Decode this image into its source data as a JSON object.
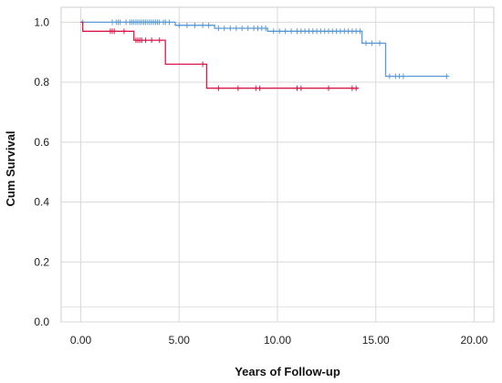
{
  "chart_data": {
    "type": "line",
    "xlabel": "Years of Follow-up",
    "ylabel": "Cum Survival",
    "xlim": [
      -1,
      21
    ],
    "ylim": [
      0,
      1.05
    ],
    "x_ticks": [
      0,
      5,
      10,
      15,
      20
    ],
    "x_tick_labels": [
      "0.00",
      "5.00",
      "10.00",
      "15.00",
      "20.00"
    ],
    "y_ticks": [
      0,
      0.2,
      0.4,
      0.6,
      0.8,
      1.0
    ],
    "y_tick_labels": [
      "0.0",
      "0.2",
      "0.4",
      "0.6",
      "0.8",
      "1.0"
    ],
    "grid": true,
    "legend": "none",
    "series": [
      {
        "color": "#5b9bd5",
        "step": [
          [
            0,
            1.0
          ],
          [
            4.8,
            1.0
          ],
          [
            4.8,
            0.99
          ],
          [
            6.8,
            0.99
          ],
          [
            6.8,
            0.98
          ],
          [
            9.5,
            0.98
          ],
          [
            9.5,
            0.97
          ],
          [
            14.3,
            0.97
          ],
          [
            14.3,
            0.93
          ],
          [
            15.5,
            0.93
          ],
          [
            15.5,
            0.82
          ],
          [
            18.7,
            0.82
          ]
        ],
        "censored": [
          [
            0.1,
            1.0
          ],
          [
            1.6,
            1.0
          ],
          [
            1.8,
            1.0
          ],
          [
            1.9,
            1.0
          ],
          [
            2.0,
            1.0
          ],
          [
            2.3,
            1.0
          ],
          [
            2.5,
            1.0
          ],
          [
            2.6,
            1.0
          ],
          [
            2.7,
            1.0
          ],
          [
            2.8,
            1.0
          ],
          [
            2.9,
            1.0
          ],
          [
            3.0,
            1.0
          ],
          [
            3.1,
            1.0
          ],
          [
            3.2,
            1.0
          ],
          [
            3.3,
            1.0
          ],
          [
            3.4,
            1.0
          ],
          [
            3.5,
            1.0
          ],
          [
            3.6,
            1.0
          ],
          [
            3.7,
            1.0
          ],
          [
            3.8,
            1.0
          ],
          [
            3.9,
            1.0
          ],
          [
            4.0,
            1.0
          ],
          [
            4.2,
            1.0
          ],
          [
            4.3,
            1.0
          ],
          [
            4.5,
            1.0
          ],
          [
            5.0,
            0.99
          ],
          [
            5.4,
            0.99
          ],
          [
            5.8,
            0.99
          ],
          [
            6.2,
            0.99
          ],
          [
            6.5,
            0.99
          ],
          [
            7.0,
            0.98
          ],
          [
            7.3,
            0.98
          ],
          [
            7.6,
            0.98
          ],
          [
            7.9,
            0.98
          ],
          [
            8.2,
            0.98
          ],
          [
            8.5,
            0.98
          ],
          [
            8.8,
            0.98
          ],
          [
            9.0,
            0.98
          ],
          [
            9.2,
            0.98
          ],
          [
            9.4,
            0.98
          ],
          [
            9.8,
            0.97
          ],
          [
            10.1,
            0.97
          ],
          [
            10.4,
            0.97
          ],
          [
            10.7,
            0.97
          ],
          [
            11.0,
            0.97
          ],
          [
            11.2,
            0.97
          ],
          [
            11.4,
            0.97
          ],
          [
            11.6,
            0.97
          ],
          [
            11.8,
            0.97
          ],
          [
            12.0,
            0.97
          ],
          [
            12.2,
            0.97
          ],
          [
            12.4,
            0.97
          ],
          [
            12.6,
            0.97
          ],
          [
            12.8,
            0.97
          ],
          [
            13.0,
            0.97
          ],
          [
            13.2,
            0.97
          ],
          [
            13.4,
            0.97
          ],
          [
            13.6,
            0.97
          ],
          [
            13.8,
            0.97
          ],
          [
            14.0,
            0.97
          ],
          [
            14.2,
            0.97
          ],
          [
            14.5,
            0.93
          ],
          [
            14.8,
            0.93
          ],
          [
            15.2,
            0.93
          ],
          [
            15.7,
            0.82
          ],
          [
            16.0,
            0.82
          ],
          [
            16.2,
            0.82
          ],
          [
            16.4,
            0.82
          ],
          [
            18.6,
            0.82
          ]
        ]
      },
      {
        "color": "#d81b4a",
        "step": [
          [
            0,
            1.0
          ],
          [
            0.1,
            1.0
          ],
          [
            0.1,
            0.97
          ],
          [
            2.7,
            0.97
          ],
          [
            2.7,
            0.94
          ],
          [
            4.3,
            0.94
          ],
          [
            4.3,
            0.86
          ],
          [
            6.4,
            0.86
          ],
          [
            6.4,
            0.78
          ],
          [
            14.1,
            0.78
          ]
        ],
        "censored": [
          [
            1.5,
            0.97
          ],
          [
            1.6,
            0.97
          ],
          [
            1.7,
            0.97
          ],
          [
            2.2,
            0.97
          ],
          [
            2.8,
            0.94
          ],
          [
            2.9,
            0.94
          ],
          [
            3.0,
            0.94
          ],
          [
            3.1,
            0.94
          ],
          [
            3.3,
            0.94
          ],
          [
            3.6,
            0.94
          ],
          [
            4.0,
            0.94
          ],
          [
            6.2,
            0.86
          ],
          [
            7.0,
            0.78
          ],
          [
            8.0,
            0.78
          ],
          [
            8.9,
            0.78
          ],
          [
            9.1,
            0.78
          ],
          [
            11.0,
            0.78
          ],
          [
            11.2,
            0.78
          ],
          [
            12.6,
            0.78
          ],
          [
            13.8,
            0.78
          ],
          [
            14.0,
            0.78
          ]
        ]
      }
    ]
  }
}
